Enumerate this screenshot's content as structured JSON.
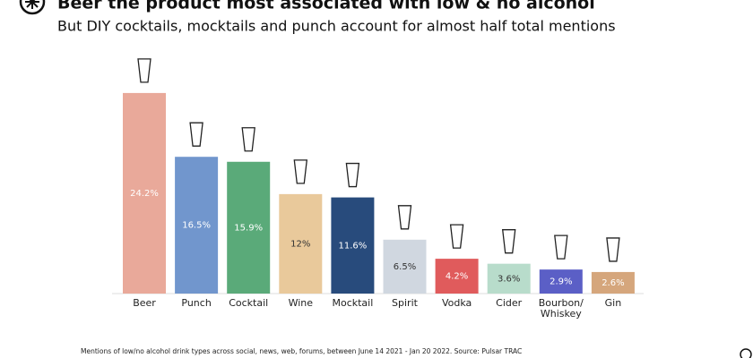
{
  "chart_data": {
    "type": "bar",
    "title": "Beer the product most associated with low & no alcohol",
    "subtitle": "But DIY cocktails, mocktails and punch account for almost half total mentions",
    "categories": [
      "Beer",
      "Punch",
      "Cocktail",
      "Wine",
      "Mocktail",
      "Spirit",
      "Vodka",
      "Cider",
      "Bourbon/ Whiskey",
      "Gin"
    ],
    "values": [
      24.2,
      16.5,
      15.9,
      12,
      11.6,
      6.5,
      4.2,
      3.6,
      2.9,
      2.6
    ],
    "value_labels": [
      "24.2%",
      "16.5%",
      "15.9%",
      "12%",
      "11.6%",
      "6.5%",
      "4.2%",
      "3.6%",
      "2.9%",
      "2.6%"
    ],
    "colors": [
      "#e9a99a",
      "#7196cd",
      "#5aaa79",
      "#e9c99b",
      "#284b7c",
      "#d0d7e0",
      "#e05b5c",
      "#b8dccb",
      "#5b5fc6",
      "#d5a67c"
    ],
    "label_colors": [
      "#ffffff",
      "#ffffff",
      "#ffffff",
      "#333333",
      "#ffffff",
      "#333333",
      "#ffffff",
      "#333333",
      "#ffffff",
      "#ffffff"
    ],
    "note": "Mentions of low/no alcohol drink types across social, news, web, forums, between June 14 2021 - Jan 20 2022. Source: Pulsar TRAC"
  }
}
